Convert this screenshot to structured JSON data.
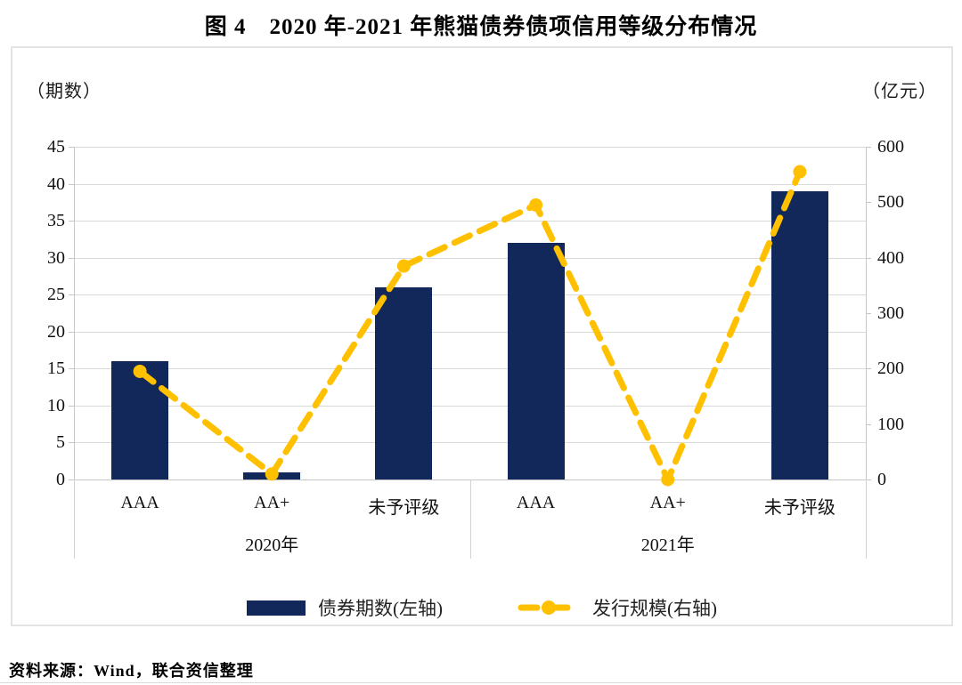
{
  "title": {
    "fig_label": "图 4",
    "text": "2020 年-2021 年熊猫债券债项信用等级分布情况"
  },
  "chart": {
    "left_axis_unit": "（期数）",
    "right_axis_unit": "（亿元）"
  },
  "chart_data": {
    "type": "bar+line",
    "categories": [
      "AAA",
      "AA+",
      "未予评级",
      "AAA",
      "AA+",
      "未予评级"
    ],
    "groups": [
      {
        "label": "2020年",
        "span": 3
      },
      {
        "label": "2021年",
        "span": 3
      }
    ],
    "series": [
      {
        "name": "债券期数(左轴)",
        "type": "bar",
        "axis": "left",
        "color": "#12275A",
        "values": [
          16,
          1,
          26,
          32,
          0,
          39
        ]
      },
      {
        "name": "发行规模(右轴)",
        "type": "line",
        "axis": "right",
        "color": "#FFC000",
        "values": [
          195,
          10,
          385,
          495,
          0,
          555
        ]
      }
    ],
    "left_axis": {
      "label": "（期数）",
      "min": 0,
      "max": 45,
      "step": 5,
      "ticks": [
        0,
        5,
        10,
        15,
        20,
        25,
        30,
        35,
        40,
        45
      ]
    },
    "right_axis": {
      "label": "（亿元）",
      "min": 0,
      "max": 600,
      "step": 100,
      "ticks": [
        0,
        100,
        200,
        300,
        400,
        500,
        600
      ]
    },
    "grid": true,
    "legend_position": "bottom",
    "colors": {
      "bar": "#12275A",
      "line": "#FFC000",
      "gridline": "#d9d9d9"
    }
  },
  "legend": {
    "bar_label": "债券期数(左轴)",
    "line_label": "发行规模(右轴)"
  },
  "source": "资料来源：Wind，联合资信整理"
}
